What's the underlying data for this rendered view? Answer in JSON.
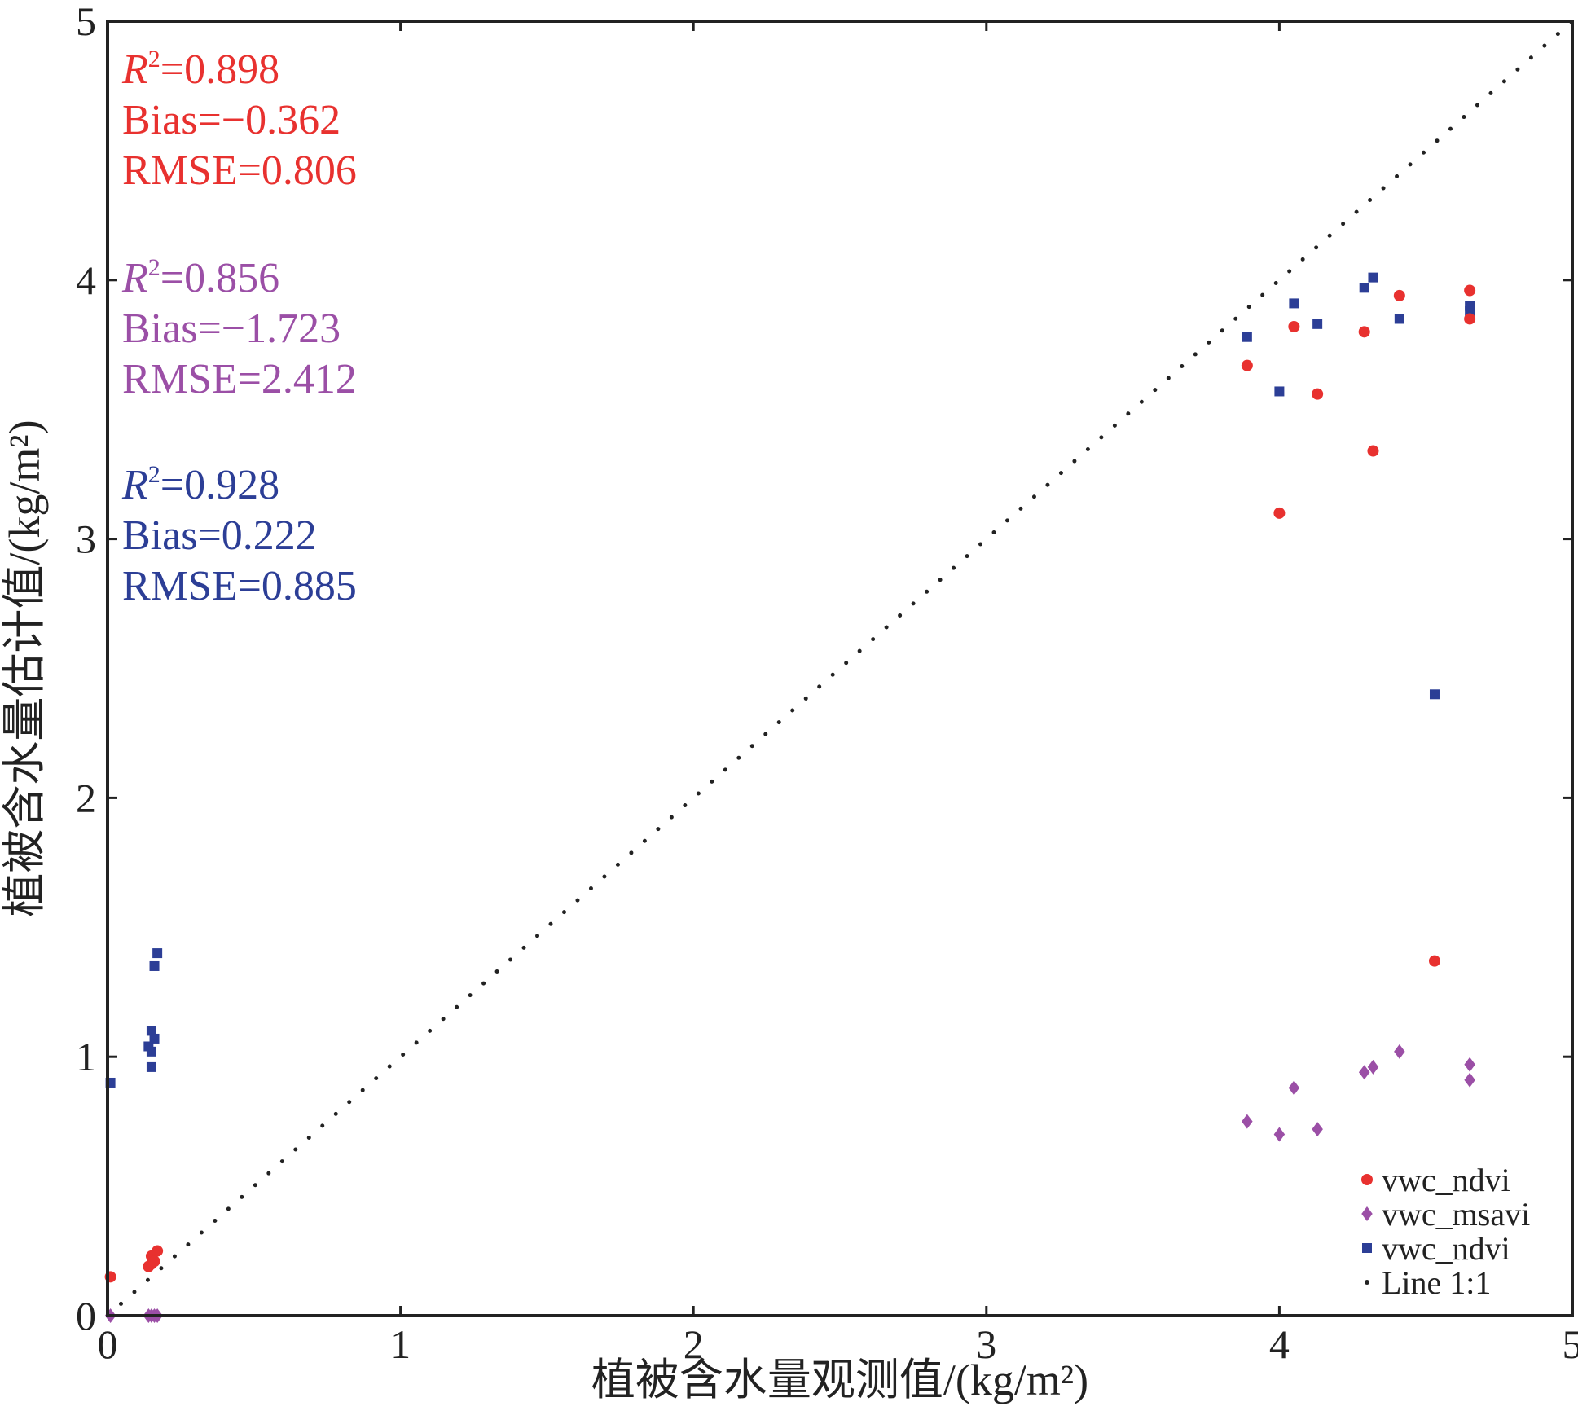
{
  "chart_data": {
    "type": "scatter",
    "xlabel": "植被含水量观测值/(kg/m²)",
    "ylabel": "植被含水量估计值/(kg/m²)",
    "xlim": [
      0,
      5
    ],
    "ylim": [
      0,
      5
    ],
    "xticks": [
      "0",
      "1",
      "2",
      "3",
      "4",
      "5"
    ],
    "yticks": [
      "0",
      "1",
      "2",
      "3",
      "4",
      "5"
    ],
    "grid": false,
    "legend_position": "bottom-right",
    "series": [
      {
        "name": "vwc_ndvi",
        "marker": "circle",
        "color": "#e8312f",
        "points": [
          [
            0.01,
            0.15
          ],
          [
            0.14,
            0.19
          ],
          [
            0.15,
            0.2
          ],
          [
            0.15,
            0.23
          ],
          [
            0.16,
            0.21
          ],
          [
            0.17,
            0.25
          ],
          [
            3.89,
            3.67
          ],
          [
            4.0,
            3.1
          ],
          [
            4.05,
            3.82
          ],
          [
            4.13,
            3.56
          ],
          [
            4.29,
            3.8
          ],
          [
            4.32,
            3.34
          ],
          [
            4.41,
            3.94
          ],
          [
            4.53,
            1.37
          ],
          [
            4.65,
            3.96
          ],
          [
            4.65,
            3.85
          ]
        ],
        "stats": {
          "r2": "=0.898",
          "bias": "Bias=−0.362",
          "rmse": "RMSE=0.806"
        }
      },
      {
        "name": "vwc_msavi",
        "marker": "diamond",
        "color": "#9b4fa6",
        "points": [
          [
            0.01,
            0.0
          ],
          [
            0.14,
            0.0
          ],
          [
            0.15,
            0.0
          ],
          [
            0.16,
            0.0
          ],
          [
            0.17,
            0.0
          ],
          [
            3.89,
            0.75
          ],
          [
            4.0,
            0.7
          ],
          [
            4.05,
            0.88
          ],
          [
            4.13,
            0.72
          ],
          [
            4.29,
            0.94
          ],
          [
            4.32,
            0.96
          ],
          [
            4.41,
            1.02
          ],
          [
            4.65,
            0.97
          ],
          [
            4.65,
            0.91
          ]
        ],
        "stats": {
          "r2": "=0.856",
          "bias": "Bias=−1.723",
          "rmse": "RMSE=2.412"
        }
      },
      {
        "name": "vwc_ndvi",
        "marker": "square",
        "color": "#2c3e96",
        "points": [
          [
            0.01,
            0.9
          ],
          [
            0.14,
            1.04
          ],
          [
            0.15,
            1.02
          ],
          [
            0.15,
            0.96
          ],
          [
            0.15,
            1.1
          ],
          [
            0.16,
            1.07
          ],
          [
            0.16,
            1.35
          ],
          [
            0.17,
            1.4
          ],
          [
            3.89,
            3.78
          ],
          [
            4.0,
            3.57
          ],
          [
            4.05,
            3.91
          ],
          [
            4.13,
            3.83
          ],
          [
            4.29,
            3.97
          ],
          [
            4.32,
            4.01
          ],
          [
            4.41,
            3.85
          ],
          [
            4.53,
            2.4
          ],
          [
            4.65,
            3.9
          ],
          [
            4.65,
            3.88
          ]
        ],
        "stats": {
          "r2": "=0.928",
          "bias": "Bias=0.222",
          "rmse": "RMSE=0.885"
        }
      }
    ],
    "reference_line": {
      "name": "Line 1:1",
      "style": "dotted",
      "color": "#222222"
    },
    "stats_r2_symbol": "R",
    "stats_r2_sup": "2"
  }
}
